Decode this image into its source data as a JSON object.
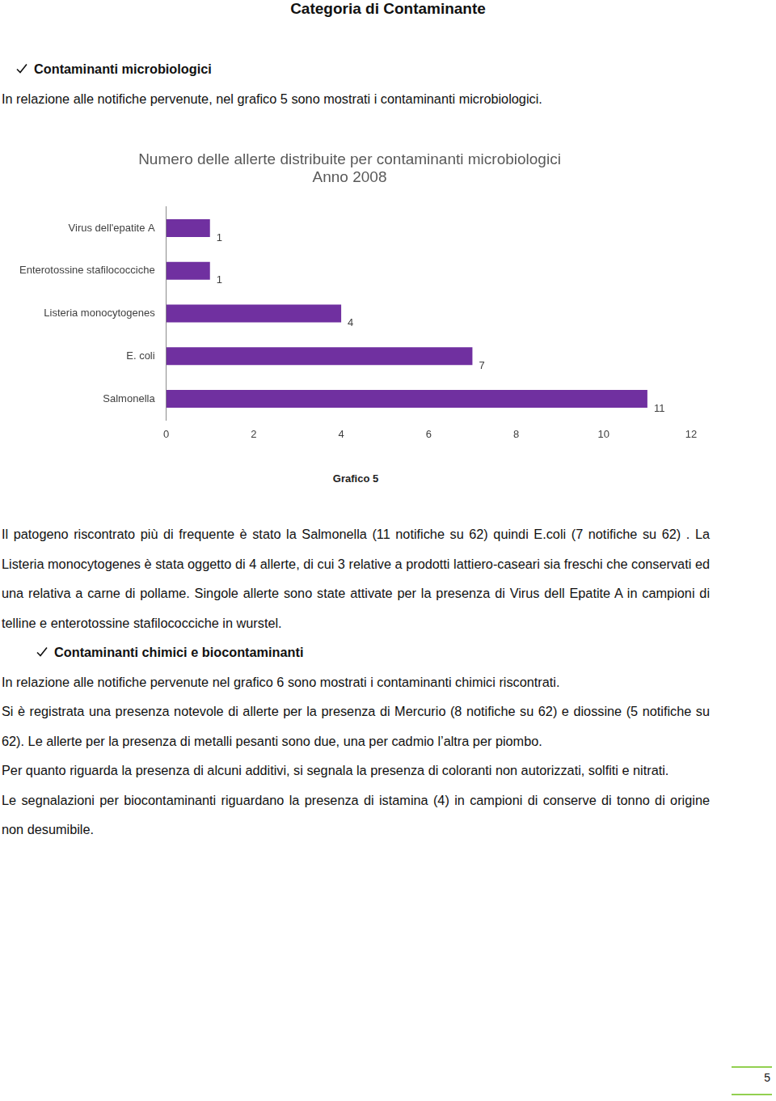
{
  "title": "Categoria di Contaminante",
  "sections": [
    {
      "heading": "Contaminanti microbiologici",
      "paragraphs": [
        "In relazione alle notifiche pervenute, nel grafico 5 sono mostrati i contaminanti microbiologici."
      ],
      "after_chart": [
        "Il patogeno riscontrato più di frequente è stato la Salmonella (11 notifiche su 62) quindi E.coli (7 notifiche su 62) . La Listeria monocytogenes è stata oggetto di 4 allerte, di cui 3 relative a prodotti lattiero-caseari sia freschi che conservati ed una relativa a carne di pollame. Singole allerte sono state attivate per la presenza di Virus dell Epatite A in campioni di telline e enterotossine stafilococciche in wurstel."
      ]
    },
    {
      "heading": "Contaminanti chimici e biocontaminanti",
      "paragraphs": [
        "In relazione alle notifiche pervenute nel grafico 6 sono mostrati i  contaminanti chimici riscontrati.",
        "Si è registrata una presenza notevole di allerte per la presenza di Mercurio (8 notifiche su 62) e diossine (5 notifiche su 62). Le allerte per la presenza di metalli pesanti sono due, una per cadmio l’altra per piombo.",
        "Per quanto riguarda la presenza di alcuni additivi, si segnala la presenza di coloranti non autorizzati, solfiti e nitrati.",
        "Le segnalazioni per biocontaminanti riguardano la presenza di istamina (4) in campioni di conserve di tonno di  origine non desumibile."
      ],
      "after_chart": []
    }
  ],
  "chart_data": {
    "type": "bar",
    "orientation": "horizontal",
    "title": [
      "Numero delle allerte distribuite per contaminanti microbiologici",
      "Anno 2008"
    ],
    "categories": [
      "Virus dell'epatite A",
      "Enterotossine stafilococciche",
      "Listeria monocytogenes",
      "E. coli",
      "Salmonella"
    ],
    "values": [
      1,
      1,
      4,
      7,
      11
    ],
    "color": "#7030a0",
    "xlim": [
      0,
      12
    ],
    "xticks": [
      0,
      2,
      4,
      6,
      8,
      10,
      12
    ],
    "grid": false,
    "data_labels": true
  },
  "figure_caption": "Grafico 5",
  "page_number": 5
}
